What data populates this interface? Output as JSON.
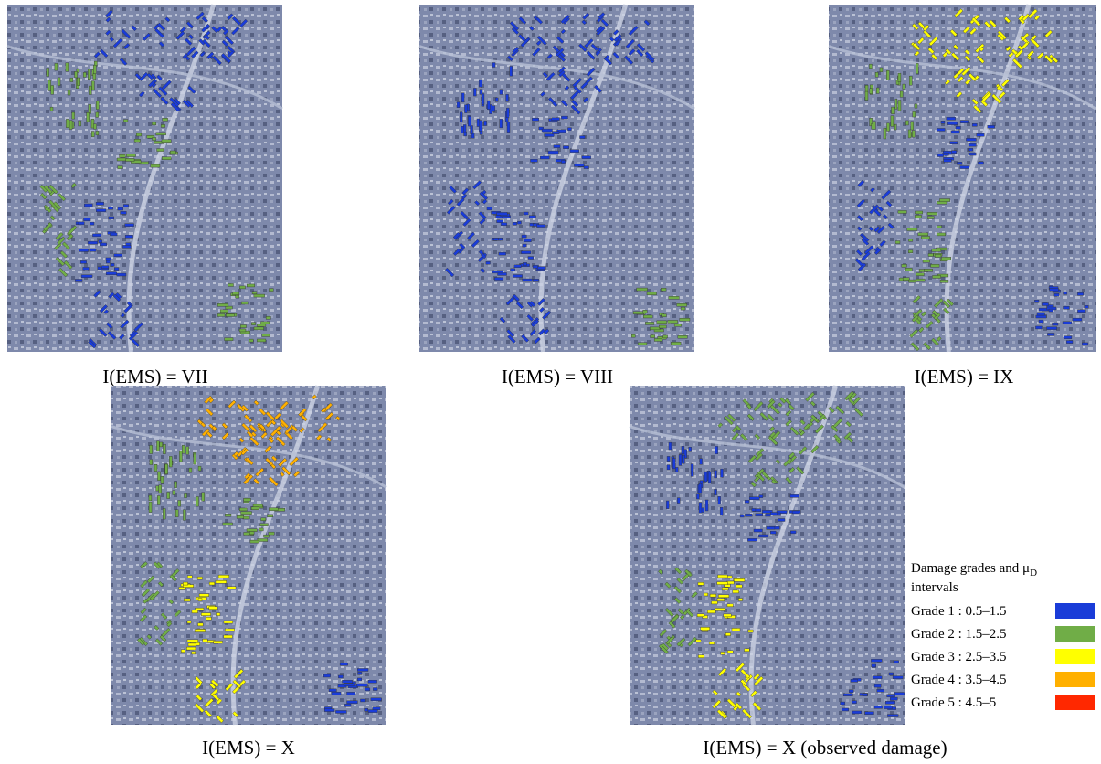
{
  "panels": [
    {
      "caption": "I(EMS) = VII"
    },
    {
      "caption": "I(EMS) = VIII"
    },
    {
      "caption": "I(EMS) = IX"
    },
    {
      "caption": "I(EMS) = X"
    },
    {
      "caption": "I(EMS) = X (observed damage)"
    }
  ],
  "legend": {
    "title": "Damage grades and μ",
    "title_subscript": "D",
    "title_line2": "intervals",
    "items": [
      {
        "label": "Grade 1 : 0.5–1.5",
        "color": "#1a3cd8"
      },
      {
        "label": "Grade 2 : 1.5–2.5",
        "color": "#70ad47"
      },
      {
        "label": "Grade 3 : 2.5–3.5",
        "color": "#ffff00"
      },
      {
        "label": "Grade 4 : 3.5–4.5",
        "color": "#ffb000"
      },
      {
        "label": "Grade 5 : 4.5–5",
        "color": "#ff2800"
      }
    ]
  }
}
